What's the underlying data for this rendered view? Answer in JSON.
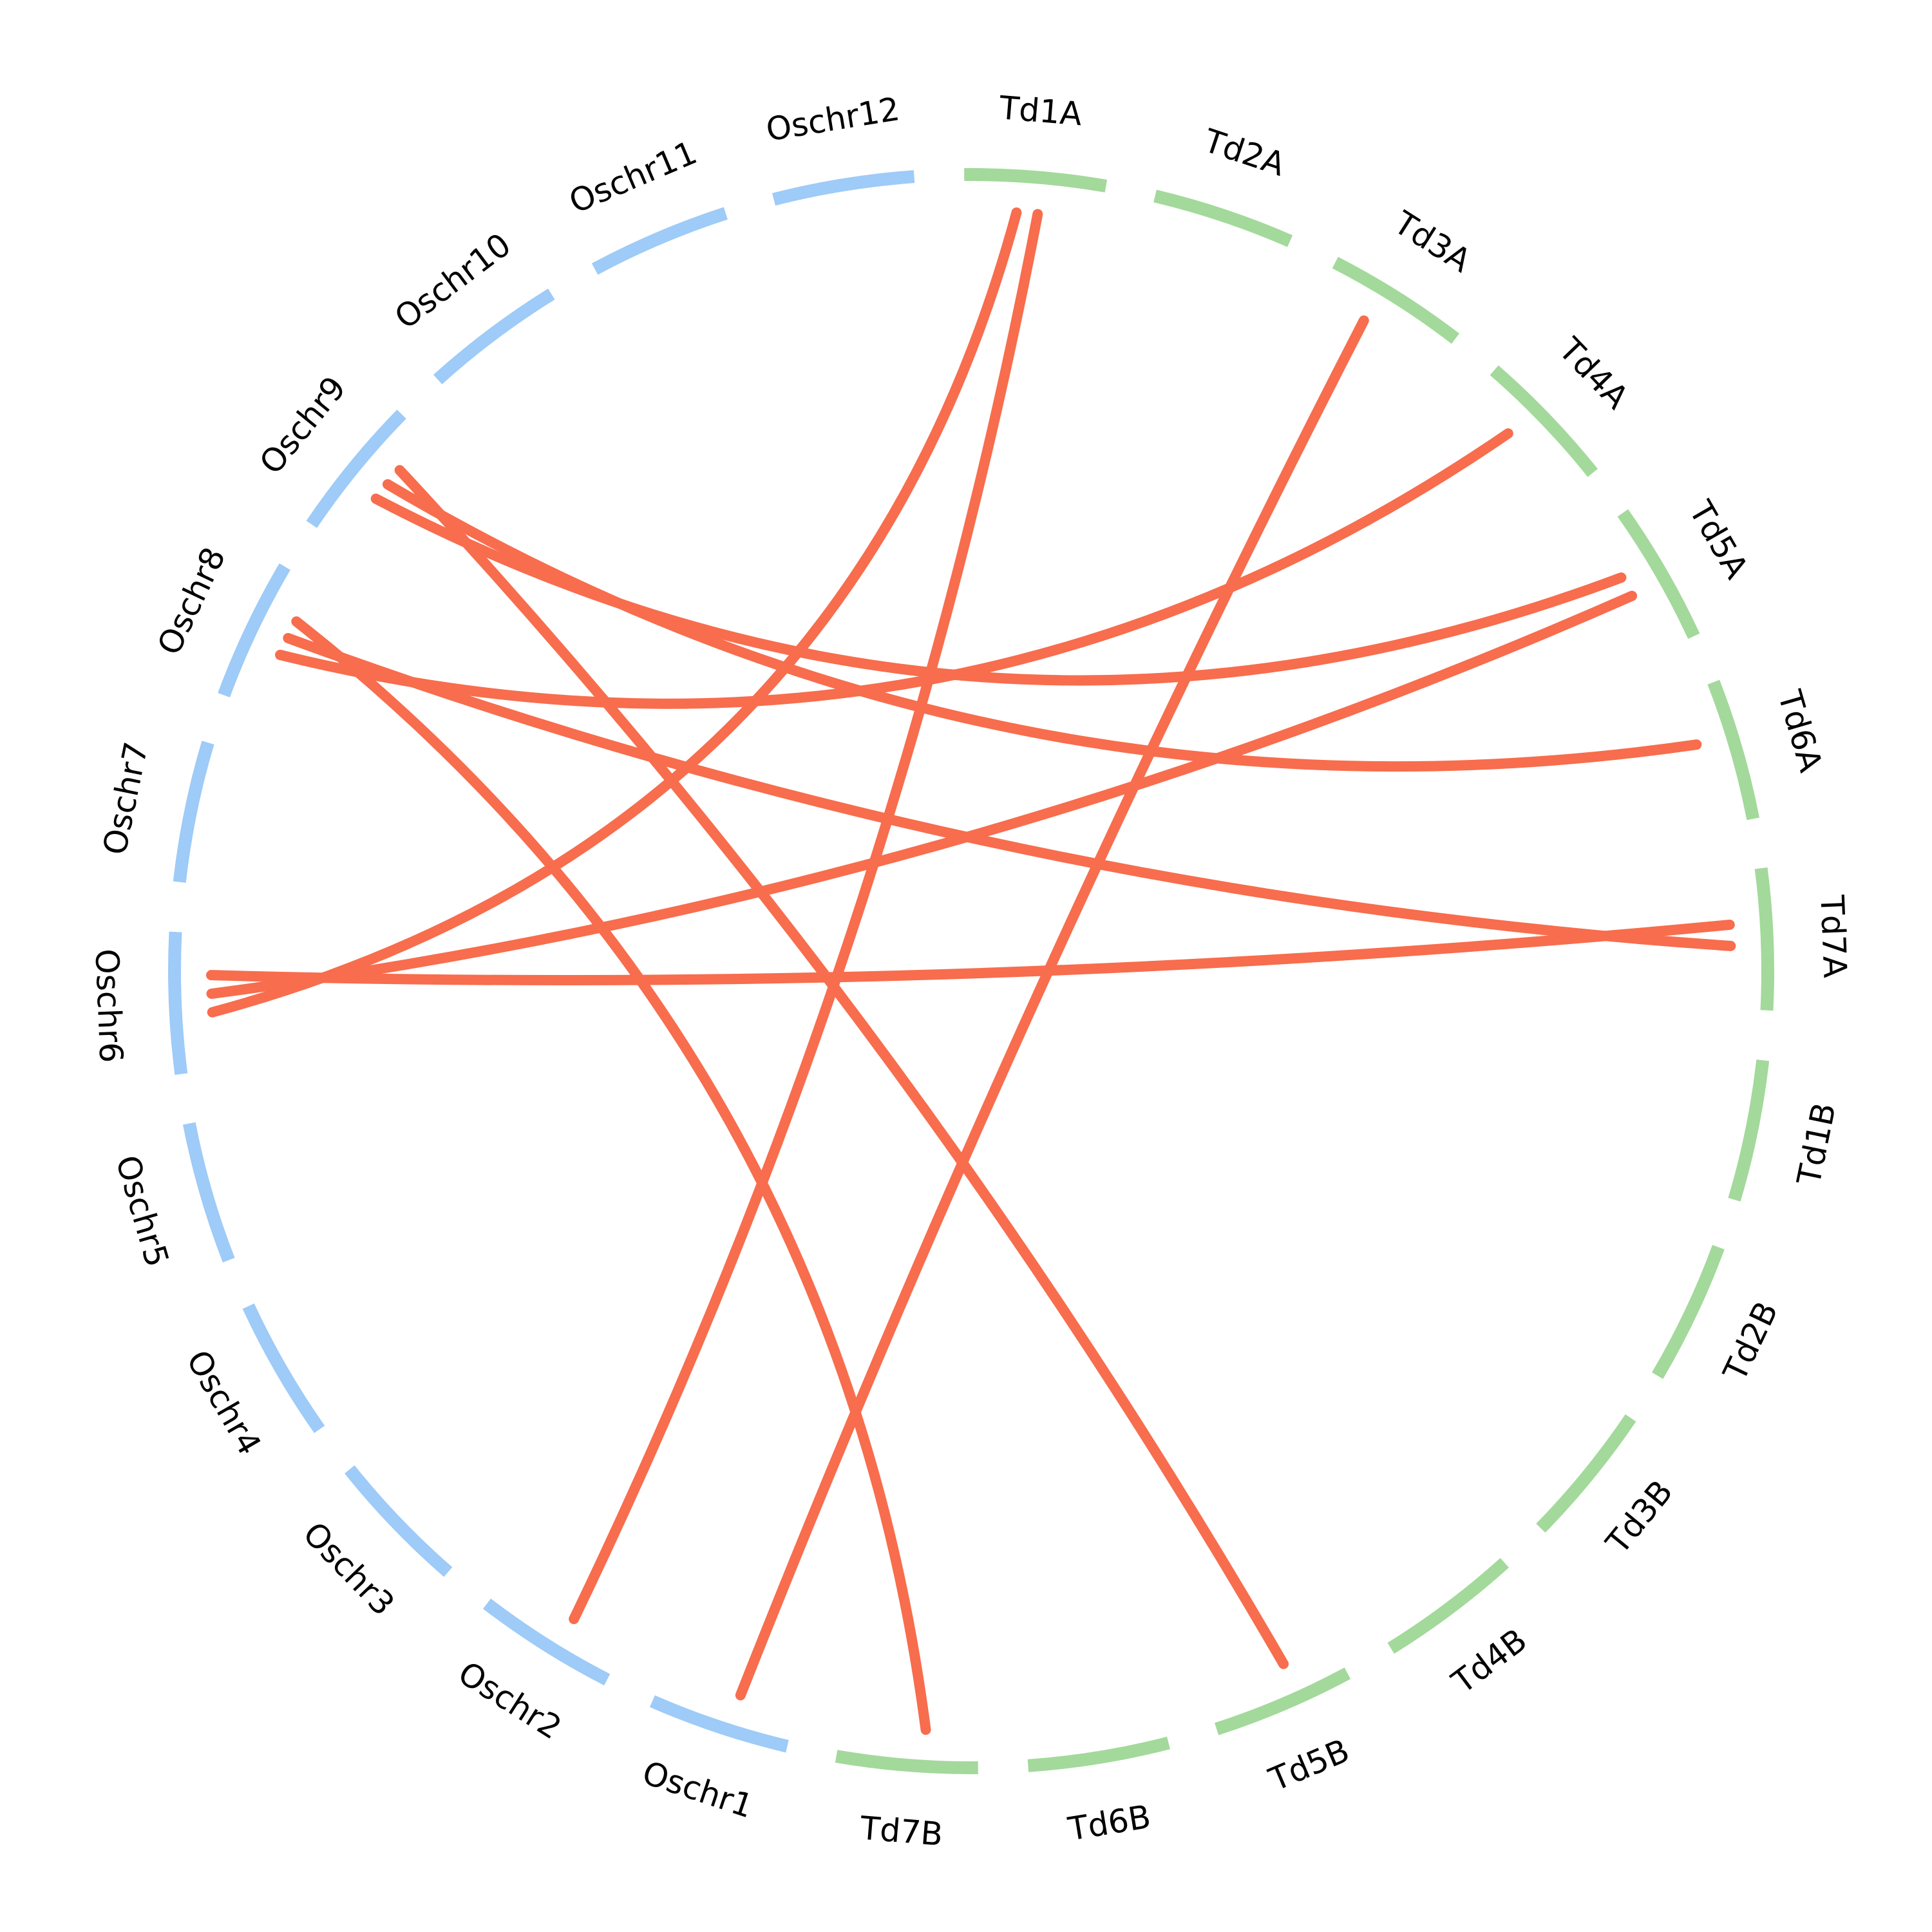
{
  "chromosomes": [
    {
      "name": "Oschr12",
      "group": "Os"
    },
    {
      "name": "Oschr11",
      "group": "Os"
    },
    {
      "name": "Oschr10",
      "group": "Os"
    },
    {
      "name": "Oschr9",
      "group": "Os"
    },
    {
      "name": "Oschr8",
      "group": "Os"
    },
    {
      "name": "Oschr7",
      "group": "Os"
    },
    {
      "name": "Oschr6",
      "group": "Os"
    },
    {
      "name": "Oschr5",
      "group": "Os"
    },
    {
      "name": "Oschr4",
      "group": "Os"
    },
    {
      "name": "Oschr3",
      "group": "Os"
    },
    {
      "name": "Oschr2",
      "group": "Os"
    },
    {
      "name": "Oschr1",
      "group": "Os"
    },
    {
      "name": "Td1A",
      "group": "Td"
    },
    {
      "name": "Td2A",
      "group": "Td"
    },
    {
      "name": "Td3A",
      "group": "Td"
    },
    {
      "name": "Td4A",
      "group": "Td"
    },
    {
      "name": "Td5A",
      "group": "Td"
    },
    {
      "name": "Td6A",
      "group": "Td"
    },
    {
      "name": "Td7A",
      "group": "Td"
    },
    {
      "name": "Td1B",
      "group": "Td"
    },
    {
      "name": "Td2B",
      "group": "Td"
    },
    {
      "name": "Td3B",
      "group": "Td"
    },
    {
      "name": "Td4B",
      "group": "Td"
    },
    {
      "name": "Td5B",
      "group": "Td"
    },
    {
      "name": "Td6B",
      "group": "Td"
    },
    {
      "name": "Td7B",
      "group": "Td"
    }
  ],
  "colors": {
    "Os": "#9ecbf7",
    "Td": "#a3d99b",
    "link": "#f76d4d",
    "label": "#000000"
  },
  "links": [
    {
      "from": "Td1A",
      "to": "Oschr6"
    },
    {
      "from": "Td1A",
      "to": "Oschr2"
    },
    {
      "from": "Td3A",
      "to": "Oschr1"
    },
    {
      "from": "Td4A",
      "to": "Oschr8"
    },
    {
      "from": "Td5A",
      "to": "Oschr9"
    },
    {
      "from": "Td5A",
      "to": "Oschr6"
    },
    {
      "from": "Td6A",
      "to": "Oschr9"
    },
    {
      "from": "Td7A",
      "to": "Oschr6"
    },
    {
      "from": "Td7A",
      "to": "Oschr8"
    },
    {
      "from": "Td5B",
      "to": "Oschr9"
    },
    {
      "from": "Td7B",
      "to": "Oschr8"
    }
  ]
}
